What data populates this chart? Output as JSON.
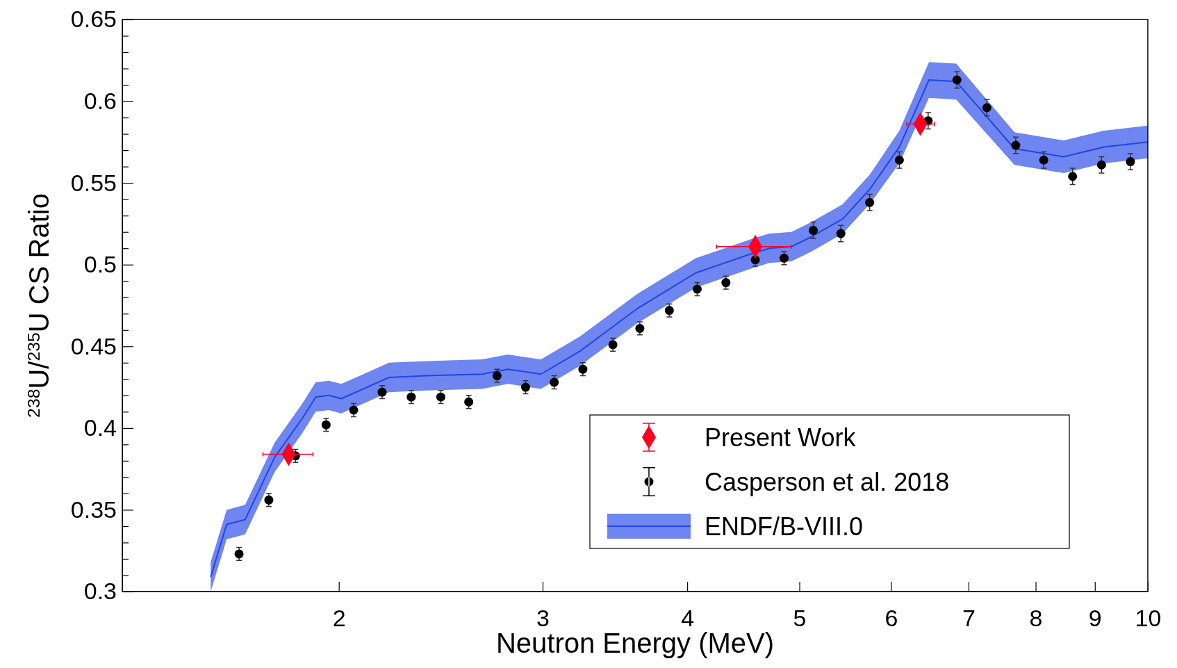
{
  "chart_data": {
    "type": "scatter",
    "xlabel": "Neutron Energy (MeV)",
    "ylabel": "$^{238}$U/$^{235}$U CS Ratio",
    "log": "x",
    "xlim": [
      1.3,
      10
    ],
    "ylim": [
      0.3,
      0.65
    ],
    "xticks": [
      2,
      3,
      4,
      5,
      6,
      7,
      8,
      9,
      10
    ],
    "yticks": [
      0.3,
      {
        "value": 0.31,
        "label": null
      },
      {
        "value": 0.32,
        "label": null
      },
      {
        "value": 0.33,
        "label": null
      },
      {
        "value": 0.34,
        "label": null
      },
      0.35,
      {
        "value": 0.36,
        "label": null
      },
      {
        "value": 0.37,
        "label": null
      },
      {
        "value": 0.38,
        "label": null
      },
      {
        "value": 0.39,
        "label": null
      },
      0.4,
      {
        "value": 0.41,
        "label": null
      },
      {
        "value": 0.42,
        "label": null
      },
      {
        "value": 0.43,
        "label": null
      },
      {
        "value": 0.44,
        "label": null
      },
      0.45,
      {
        "value": 0.46,
        "label": null
      },
      {
        "value": 0.47,
        "label": null
      },
      {
        "value": 0.48,
        "label": null
      },
      {
        "value": 0.49,
        "label": null
      },
      0.5,
      {
        "value": 0.51,
        "label": null
      },
      {
        "value": 0.52,
        "label": null
      },
      {
        "value": 0.53,
        "label": null
      },
      {
        "value": 0.54,
        "label": null
      },
      0.55,
      {
        "value": 0.56,
        "label": null
      },
      {
        "value": 0.57,
        "label": null
      },
      {
        "value": 0.58,
        "label": null
      },
      {
        "value": 0.59,
        "label": null
      },
      0.6,
      {
        "value": 0.61,
        "label": null
      },
      {
        "value": 0.62,
        "label": null
      },
      {
        "value": 0.63,
        "label": null
      },
      {
        "value": 0.64,
        "label": null
      },
      0.65
    ],
    "grid": false,
    "legend": "bottom right",
    "series": [
      {
        "name": "ENDF/B-VIII.0",
        "type": "line",
        "color": "#2244e8",
        "line_style": "solid",
        "marker": "none",
        "x": [
          1.55,
          1.6,
          1.66,
          1.76,
          1.86,
          1.91,
          1.96,
          2.01,
          2.21,
          2.38,
          2.66,
          2.8,
          2.99,
          3.23,
          3.62,
          4.07,
          4.56,
          4.71,
          4.92,
          5.12,
          5.45,
          5.75,
          6.1,
          6.47,
          6.83,
          7.67,
          8.46,
          9.16,
          10
        ],
        "values": [
          0.309,
          0.341,
          0.344,
          0.382,
          0.406,
          0.419,
          0.42,
          0.418,
          0.431,
          0.432,
          0.433,
          0.436,
          0.433,
          0.447,
          0.473,
          0.495,
          0.507,
          0.51,
          0.511,
          0.517,
          0.528,
          0.546,
          0.572,
          0.613,
          0.612,
          0.571,
          0.566,
          0.572,
          0.575
        ],
        "lower": [
          0.3,
          0.332,
          0.335,
          0.373,
          0.397,
          0.41,
          0.411,
          0.409,
          0.422,
          0.423,
          0.424,
          0.427,
          0.424,
          0.438,
          0.464,
          0.486,
          0.498,
          0.501,
          0.502,
          0.508,
          0.519,
          0.537,
          0.562,
          0.602,
          0.601,
          0.561,
          0.556,
          0.562,
          0.565
        ],
        "upper": [
          0.318,
          0.35,
          0.353,
          0.391,
          0.415,
          0.428,
          0.429,
          0.427,
          0.44,
          0.441,
          0.442,
          0.445,
          0.442,
          0.456,
          0.482,
          0.504,
          0.516,
          0.519,
          0.52,
          0.526,
          0.537,
          0.555,
          0.582,
          0.624,
          0.623,
          0.581,
          0.576,
          0.582,
          0.585
        ]
      },
      {
        "name": "Casperson et al. 2018",
        "color": "#000000",
        "marker": "circle",
        "x": [
          1.64,
          1.74,
          1.835,
          1.95,
          2.06,
          2.18,
          2.31,
          2.45,
          2.59,
          2.74,
          2.9,
          3.07,
          3.25,
          3.45,
          3.64,
          3.86,
          4.08,
          4.32,
          4.58,
          4.85,
          5.14,
          5.43,
          5.75,
          6.1,
          6.46,
          6.84,
          7.26,
          7.69,
          8.13,
          8.61,
          9.12,
          9.66
        ],
        "values": [
          0.323,
          0.356,
          0.383,
          0.402,
          0.411,
          0.422,
          0.419,
          0.419,
          0.416,
          0.432,
          0.425,
          0.428,
          0.436,
          0.451,
          0.461,
          0.472,
          0.485,
          0.489,
          0.503,
          0.504,
          0.521,
          0.519,
          0.538,
          0.564,
          0.588,
          0.613,
          0.596,
          0.573,
          0.564,
          0.554,
          0.561,
          0.563
        ],
        "errors": [
          0.004,
          0.004,
          0.004,
          0.004,
          0.004,
          0.004,
          0.004,
          0.004,
          0.004,
          0.004,
          0.004,
          0.004,
          0.004,
          0.004,
          0.004,
          0.004,
          0.004,
          0.004,
          0.004,
          0.004,
          0.005,
          0.005,
          0.005,
          0.005,
          0.005,
          0.005,
          0.005,
          0.005,
          0.005,
          0.005,
          0.005,
          0.005
        ]
      },
      {
        "name": "Present Work",
        "color": "#ff0022",
        "marker": "diamond",
        "x": [
          1.81,
          4.58,
          6.36
        ],
        "values": [
          0.384,
          0.511,
          0.586
        ],
        "errors": [
          0.003,
          0.003,
          0.004
        ],
        "xerrors": [
          [
            1.72,
            1.9
          ],
          [
            4.24,
            4.92
          ],
          [
            6.19,
            6.54
          ]
        ]
      }
    ]
  }
}
